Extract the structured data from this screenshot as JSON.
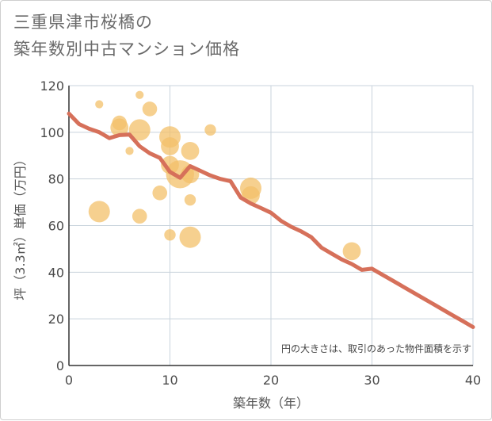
{
  "title": {
    "line1": "三重県津市桜橋の",
    "line2": "築年数別中古マンション価格"
  },
  "chart_data": {
    "type": "scatter",
    "xlabel": "築年数（年）",
    "ylabel": "坪（3.3㎡）単価（万円）",
    "xlim": [
      0,
      40
    ],
    "ylim": [
      0,
      120
    ],
    "x_ticks": [
      "0",
      "10",
      "20",
      "30",
      "40"
    ],
    "y_ticks": [
      "0",
      "20",
      "40",
      "60",
      "80",
      "100",
      "120"
    ],
    "grid": true,
    "note": "円の大きさは、取引のあった物件面積を示す",
    "scatter_color": "#f3c06a",
    "line_color": "#d6705a",
    "points": [
      {
        "x": 3,
        "y": 112,
        "size": 1
      },
      {
        "x": 7,
        "y": 116,
        "size": 1
      },
      {
        "x": 5,
        "y": 104,
        "size": 3
      },
      {
        "x": 5,
        "y": 102,
        "size": 4
      },
      {
        "x": 7,
        "y": 101,
        "size": 5
      },
      {
        "x": 8,
        "y": 110,
        "size": 3
      },
      {
        "x": 6,
        "y": 92,
        "size": 1
      },
      {
        "x": 14,
        "y": 101,
        "size": 2
      },
      {
        "x": 10,
        "y": 98,
        "size": 5
      },
      {
        "x": 10,
        "y": 94,
        "size": 4
      },
      {
        "x": 10,
        "y": 86,
        "size": 4
      },
      {
        "x": 11,
        "y": 82,
        "size": 7
      },
      {
        "x": 12,
        "y": 82,
        "size": 4
      },
      {
        "x": 12,
        "y": 92,
        "size": 4
      },
      {
        "x": 9,
        "y": 74,
        "size": 3
      },
      {
        "x": 12,
        "y": 71,
        "size": 2
      },
      {
        "x": 18,
        "y": 76,
        "size": 5
      },
      {
        "x": 18,
        "y": 73,
        "size": 4
      },
      {
        "x": 3,
        "y": 66,
        "size": 5
      },
      {
        "x": 7,
        "y": 64,
        "size": 3
      },
      {
        "x": 10,
        "y": 56,
        "size": 2
      },
      {
        "x": 12,
        "y": 55,
        "size": 5
      },
      {
        "x": 28,
        "y": 49,
        "size": 4
      }
    ],
    "series": [
      {
        "x": [
          0,
          1,
          2,
          3,
          4,
          5,
          6,
          7,
          8,
          9,
          10,
          11,
          12,
          13,
          14,
          15,
          16,
          17,
          18,
          19,
          20,
          21,
          22,
          23,
          24,
          25,
          26,
          27,
          28,
          29,
          30,
          31,
          32,
          33,
          34,
          35,
          36,
          37,
          38,
          39,
          40
        ],
        "y": [
          108,
          103.5,
          101.5,
          100,
          97.5,
          98.8,
          99,
          94,
          91,
          89,
          83,
          80.5,
          85.5,
          83.5,
          81.5,
          80,
          79,
          72,
          69.5,
          67.5,
          65.5,
          62,
          59.5,
          57.5,
          55,
          50.5,
          48,
          45.5,
          43.5,
          41,
          41.5,
          39,
          36.5,
          34,
          31.5,
          29,
          26.5,
          24,
          21.5,
          19,
          16.5
        ]
      }
    ]
  }
}
